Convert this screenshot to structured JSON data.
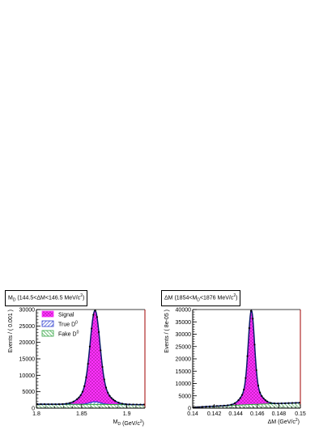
{
  "colors": {
    "signal": "#ff33ff",
    "true_d0": "#2f3fcf",
    "fake_d0": "#2fa43f",
    "total_curve": "#0b1a6b",
    "points": "#000000",
    "frame_right": "#a00000"
  },
  "chart_data": [
    {
      "type": "area",
      "title": "M_D (144.5<ΔM<146.5 MeV/c²)",
      "title_parts": {
        "main": "M",
        "sub": "D",
        "rest": " (144.5<ΔM<146.5 MeV/c",
        "sup": "2",
        "end": ")"
      },
      "xlabel": "M_D (GeV/c²)",
      "xlabel_parts": {
        "main": "M",
        "sub": "D",
        "rest": " (GeV/c",
        "sup": "2",
        "end": ")"
      },
      "ylabel": "Events / ( 0.001 )",
      "xlim": [
        1.8,
        1.92
      ],
      "ylim": [
        0,
        30000
      ],
      "x_ticks": [
        "1.8",
        "1.85",
        "1.9"
      ],
      "x_tick_values": [
        1.8,
        1.85,
        1.9
      ],
      "y_ticks": [
        "0",
        "5000",
        "10000",
        "15000",
        "20000",
        "25000",
        "30000"
      ],
      "y_tick_values": [
        0,
        5000,
        10000,
        15000,
        20000,
        25000,
        30000
      ],
      "legend": {
        "placement": "top-left",
        "entries": [
          {
            "label": "Signal",
            "key": "signal",
            "pattern": "cross"
          },
          {
            "label": "True D",
            "sup": "0",
            "key": "true_d0",
            "pattern": "diag"
          },
          {
            "label": "Fake D",
            "sup": "0",
            "key": "fake_d0",
            "pattern": "diag"
          }
        ]
      },
      "model": {
        "peak_x": 1.8648,
        "peak_signal": 27800,
        "sigma_core": 0.0052,
        "background_level": 1200,
        "true_d0_peak": 800
      },
      "series": [
        {
          "name": "Signal",
          "x": [
            1.84,
            1.845,
            1.85,
            1.855,
            1.86,
            1.8648,
            1.87,
            1.875,
            1.88,
            1.885,
            1.89
          ],
          "values": [
            1800,
            2800,
            5200,
            11000,
            22000,
            29000,
            21500,
            10500,
            4900,
            2700,
            1800
          ]
        },
        {
          "name": "True D0",
          "x": [
            1.85,
            1.86,
            1.8648,
            1.87,
            1.88
          ],
          "values": [
            1300,
            1700,
            2000,
            1700,
            1300
          ]
        },
        {
          "name": "Fake D0",
          "x": [
            1.8,
            1.86,
            1.92
          ],
          "values": [
            1200,
            1150,
            1100
          ]
        }
      ]
    },
    {
      "type": "area",
      "title": "ΔM (1854<M_D<1876 MeV/c²)",
      "title_parts": {
        "main": "ΔM (1854<M",
        "sub": "D",
        "rest": "<1876 MeV/c",
        "sup": "2",
        "end": ")"
      },
      "xlabel": "ΔM (GeV/c²)",
      "xlabel_parts": {
        "main": "ΔM",
        "sub": "",
        "rest": " (GeV/c",
        "sup": "2",
        "end": ")"
      },
      "ylabel": "Events / ( 8e-05 )",
      "xlim": [
        0.14,
        0.15
      ],
      "ylim": [
        0,
        40000
      ],
      "x_ticks": [
        "0.14",
        "0.142",
        "0.144",
        "0.146",
        "0.148",
        "0.15"
      ],
      "x_tick_values": [
        0.14,
        0.142,
        0.144,
        0.146,
        0.148,
        0.15
      ],
      "y_ticks": [
        "0",
        "5000",
        "10000",
        "15000",
        "20000",
        "25000",
        "30000",
        "35000",
        "40000"
      ],
      "y_tick_values": [
        0,
        5000,
        10000,
        15000,
        20000,
        25000,
        30000,
        35000,
        40000
      ],
      "model": {
        "peak_x": 0.14545,
        "peak_signal": 38200,
        "sigma_core": 0.00028,
        "background_start": 0,
        "background_end": 2200
      },
      "series": [
        {
          "name": "Signal",
          "x": [
            0.144,
            0.1446,
            0.145,
            0.14545,
            0.1459,
            0.1463,
            0.147
          ],
          "values": [
            1800,
            5000,
            20000,
            39500,
            20000,
            5500,
            2000
          ]
        },
        {
          "name": "Fake D0",
          "x": [
            0.1395,
            0.145,
            0.15
          ],
          "values": [
            0,
            1300,
            2200
          ]
        }
      ]
    }
  ]
}
